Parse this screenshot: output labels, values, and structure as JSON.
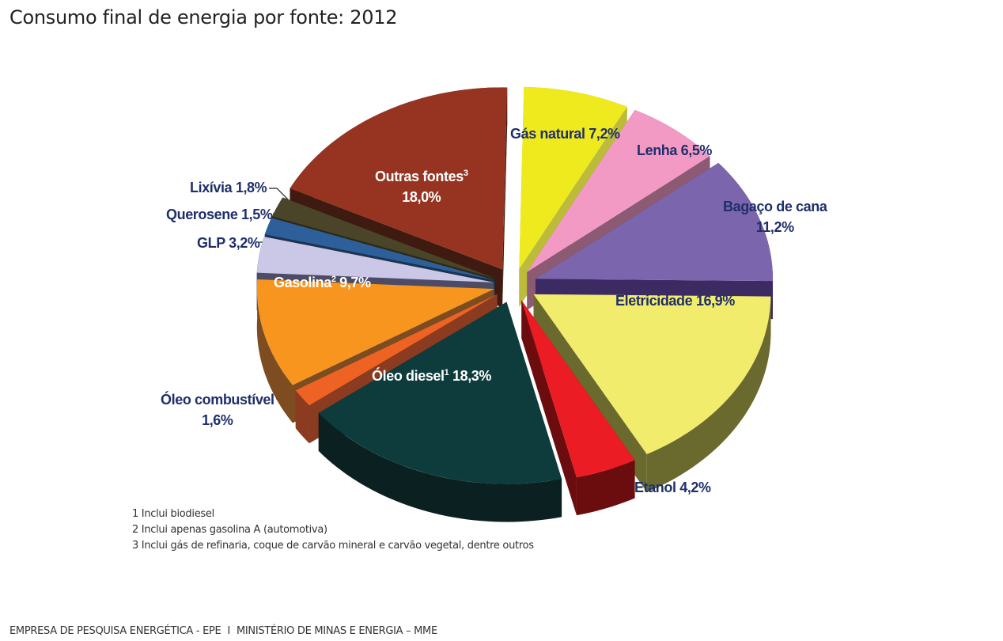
{
  "title": "Consumo final de energia por fonte: 2012",
  "chart_data": {
    "type": "pie",
    "subtype": "exploded-3d",
    "title": "Consumo final de energia por fonte: 2012",
    "unit": "%",
    "categories": [
      "Gás natural",
      "Lenha",
      "Bagaço de cana",
      "Eletricidade",
      "Etanol",
      "Óleo diesel",
      "Óleo combustível",
      "Gasolina",
      "GLP",
      "Querosene",
      "Lixívia",
      "Outras fontes"
    ],
    "values": [
      7.2,
      6.5,
      11.2,
      16.9,
      4.2,
      18.3,
      1.6,
      9.7,
      3.2,
      1.5,
      1.8,
      18.0
    ],
    "slices": [
      {
        "name": "Gás natural",
        "label": "Gás natural 7,2%",
        "value": 7.2,
        "top_color": "#eeea1e",
        "side_color": "#bcbb3a",
        "footnote": ""
      },
      {
        "name": "Lenha",
        "label": "Lenha 6,5%",
        "value": 6.5,
        "top_color": "#f29ac4",
        "side_color": "#8d5a73",
        "footnote": ""
      },
      {
        "name": "Bagaço de cana",
        "label_line1": "Bagaço de cana",
        "label_line2": "11,2%",
        "value": 11.2,
        "top_color": "#7b66ad",
        "side_color": "#3c2a63",
        "footnote": ""
      },
      {
        "name": "Eletricidade",
        "label": "Eletricidade 16,9%",
        "value": 16.9,
        "top_color": "#f2ec6c",
        "side_color": "#6b6a2e",
        "footnote": ""
      },
      {
        "name": "Etanol",
        "label": "Etanol 4,2%",
        "value": 4.2,
        "top_color": "#ec1c24",
        "side_color": "#6b0d0e",
        "footnote": ""
      },
      {
        "name": "Óleo diesel",
        "label": "Óleo diesel",
        "label_pct": "18,3%",
        "value": 18.3,
        "top_color": "#0e3b3c",
        "side_color": "#0b2121",
        "footnote": "1"
      },
      {
        "name": "Óleo combustível",
        "label_line1": "Óleo combustível",
        "label_line2": "1,6%",
        "value": 1.6,
        "top_color": "#ee6323",
        "side_color": "#8a3b20",
        "footnote": ""
      },
      {
        "name": "Gasolina",
        "label": "Gasolina",
        "label_pct": "9,7%",
        "value": 9.7,
        "top_color": "#f7951e",
        "side_color": "#7d4c20",
        "footnote": "2"
      },
      {
        "name": "GLP",
        "label": "GLP 3,2%",
        "value": 3.2,
        "top_color": "#cbc7e6",
        "side_color": "#4c4c66",
        "footnote": ""
      },
      {
        "name": "Querosene",
        "label": "Querosene 1,5%",
        "value": 1.5,
        "top_color": "#2d5f9a",
        "side_color": "#1c3350",
        "footnote": ""
      },
      {
        "name": "Lixívia",
        "label": "Lixívia 1,8%",
        "value": 1.8,
        "top_color": "#4a4428",
        "side_color": "#2b2816",
        "footnote": ""
      },
      {
        "name": "Outras fontes",
        "label_line1": "Outras fontes",
        "label_line2": "18,0%",
        "value": 18.0,
        "top_color": "#963421",
        "side_color": "#3e1a10",
        "footnote": "3"
      }
    ],
    "legend": "none (direct labels)"
  },
  "notes": [
    "1 Inclui biodiesel",
    "2 Inclui apenas gasolina A (automotiva)",
    "3 Inclui gás de refinaria, coque de carvão mineral e carvão vegetal, dentre outros"
  ],
  "footer": {
    "left": "EMPRESA DE PESQUISA ENERGÉTICA - EPE",
    "separator": "I",
    "right": "MINISTÉRIO DE MINAS E ENERGIA – MME"
  },
  "label_color": "#1f2f6b"
}
